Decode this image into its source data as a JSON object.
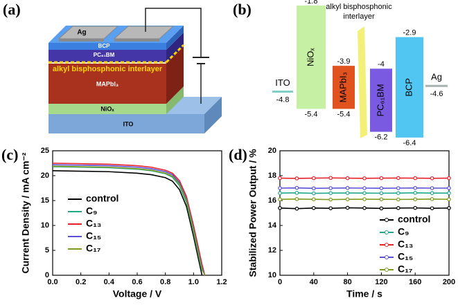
{
  "schematic": {
    "label": "(a)",
    "layers": {
      "ag": "Ag",
      "bcp": "BCP",
      "pcbm": "PC₆₁BM",
      "interlayer": "alkyl bisphosphonic interlayer",
      "perovskite": "MAPbI₃",
      "nio": "NiOₓ",
      "ito": "ITO"
    }
  },
  "energy_diagram": {
    "label": "(b)",
    "interlayer": [
      "alkyl bisphosphonic",
      "interlayer"
    ],
    "electrodes": [
      {
        "name": "ITO",
        "level": -4.8,
        "color": "#7fcfc8"
      },
      {
        "name": "Ag",
        "level": -4.6,
        "color": "#a8b0b0"
      }
    ],
    "layers": [
      {
        "name": "NiOₓ",
        "top": -1.8,
        "bottom": -5.4,
        "color": "#c6f0a4"
      },
      {
        "name": "MAPbI₃",
        "top": -3.9,
        "bottom": -5.4,
        "color": "#e0521e"
      },
      {
        "name": "PC₆₁BM",
        "top": -4.0,
        "bottom": -6.2,
        "color": "#7a5ae0"
      },
      {
        "name": "BCP",
        "top": -2.9,
        "bottom": -6.4,
        "color": "#52c6f2"
      }
    ]
  },
  "chart_data": [
    {
      "type": "line",
      "label": "(c)",
      "x_label": "Voltage / V",
      "y_label": "Current Density / mA cm⁻²",
      "x": [
        0,
        0.2,
        0.4,
        0.6,
        0.7,
        0.8,
        0.85,
        0.9,
        0.95,
        1.0,
        1.04,
        1.06,
        1.08,
        1.1
      ],
      "series": [
        {
          "name": "control",
          "color": "#000000",
          "values": [
            21.0,
            20.9,
            20.8,
            20.5,
            20.2,
            19.6,
            18.9,
            17.2,
            13.8,
            7.8,
            2.6,
            0,
            null,
            null
          ]
        },
        {
          "name": "C₉",
          "color": "#1fa98a",
          "values": [
            21.8,
            21.7,
            21.6,
            21.3,
            21.0,
            20.4,
            19.7,
            18.0,
            14.6,
            8.6,
            3.4,
            0.8,
            null,
            null
          ]
        },
        {
          "name": "C₁₃",
          "color": "#e8202a",
          "values": [
            22.5,
            22.4,
            22.3,
            22.0,
            21.7,
            21.1,
            20.5,
            19.0,
            15.8,
            10.0,
            4.8,
            2.2,
            0,
            null
          ]
        },
        {
          "name": "C₁₅",
          "color": "#5a4fd6",
          "values": [
            22.2,
            22.1,
            22.0,
            21.7,
            21.4,
            20.8,
            20.2,
            18.6,
            15.3,
            9.4,
            4.2,
            1.6,
            0,
            null
          ]
        },
        {
          "name": "C₁₇",
          "color": "#7f9a20",
          "values": [
            21.9,
            21.8,
            21.7,
            21.4,
            21.1,
            20.5,
            19.9,
            18.3,
            15.0,
            9.0,
            3.8,
            1.2,
            0,
            null
          ]
        }
      ],
      "xlim": [
        0,
        1.2
      ],
      "xticks": [
        {
          "value": 0,
          "label": "0.0"
        },
        0.2,
        0.4,
        0.6,
        0.8,
        {
          "value": 1,
          "label": "1.0"
        },
        1.2
      ],
      "ylim": [
        0,
        25
      ],
      "yticks": [
        0,
        5,
        10,
        15,
        20,
        25
      ],
      "legend": "left",
      "markers": false
    },
    {
      "type": "line",
      "label": "(d)",
      "x_label": "Time / s",
      "y_label": "Stabilized Power Output / %",
      "x": [
        0,
        20,
        40,
        60,
        80,
        100,
        120,
        140,
        160,
        180,
        200
      ],
      "series": [
        {
          "name": "control",
          "color": "#000000",
          "values": [
            15.4,
            15.35,
            15.4,
            15.38,
            15.42,
            15.4,
            15.37,
            15.4,
            15.41,
            15.38,
            15.4
          ]
        },
        {
          "name": "C₉",
          "color": "#1fa98a",
          "values": [
            16.6,
            16.62,
            16.58,
            16.6,
            16.61,
            16.6,
            16.59,
            16.6,
            16.62,
            16.6,
            16.6
          ]
        },
        {
          "name": "C₁₃",
          "color": "#e8202a",
          "values": [
            17.8,
            17.78,
            17.8,
            17.82,
            17.8,
            17.79,
            17.8,
            17.81,
            17.8,
            17.79,
            17.8
          ]
        },
        {
          "name": "C₁₅",
          "color": "#5a4fd6",
          "values": [
            17.0,
            17.02,
            16.98,
            17.0,
            17.01,
            17.0,
            16.99,
            17.0,
            17.01,
            17.0,
            17.0
          ]
        },
        {
          "name": "C₁₇",
          "color": "#7f9a20",
          "values": [
            16.1,
            16.12,
            16.1,
            16.08,
            16.1,
            16.11,
            16.1,
            16.09,
            16.1,
            16.12,
            16.1
          ]
        }
      ],
      "xlim": [
        0,
        200
      ],
      "xticks": [
        0,
        40,
        80,
        120,
        160,
        200
      ],
      "ylim": [
        10,
        20
      ],
      "yticks": [
        10,
        12,
        14,
        16,
        18,
        20
      ],
      "legend": "lower right",
      "markers": true
    }
  ]
}
